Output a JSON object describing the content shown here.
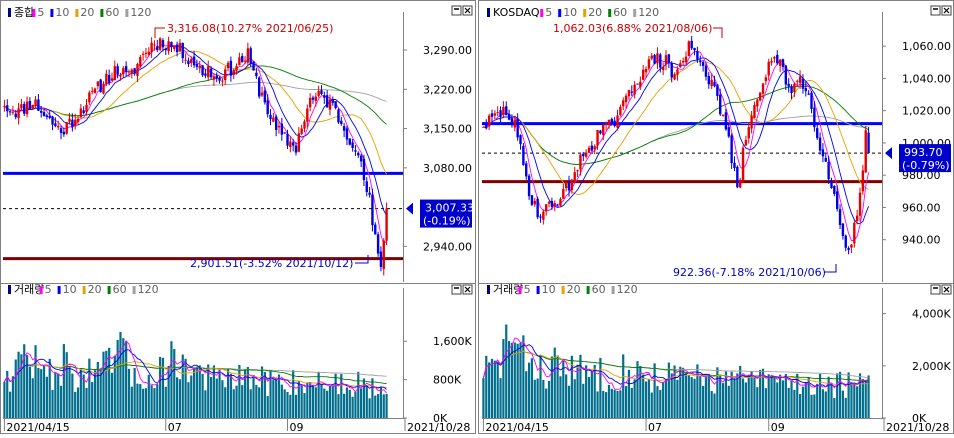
{
  "chart_data": [
    {
      "type": "candlestick",
      "pane": "price",
      "title": "종합",
      "ma_legend": [
        {
          "label": "5",
          "color": "#ff00ff"
        },
        {
          "label": "10",
          "color": "#0000ff"
        },
        {
          "label": "20",
          "color": "#e8a000"
        },
        {
          "label": "60",
          "color": "#008000"
        },
        {
          "label": "120",
          "color": "#a0a0a0"
        }
      ],
      "ylim": [
        2880,
        3340
      ],
      "yticks": [
        "3,290.00",
        "3,220.00",
        "3,150.00",
        "3,080.00",
        "2,940.00"
      ],
      "ytick_values": [
        3290,
        3220,
        3150,
        3080,
        2940
      ],
      "start": 3192,
      "n": 136,
      "waypoints": [
        [
          0,
          3190
        ],
        [
          5,
          3180
        ],
        [
          10,
          3200
        ],
        [
          15,
          3170
        ],
        [
          20,
          3145
        ],
        [
          24,
          3165
        ],
        [
          28,
          3190
        ],
        [
          32,
          3215
        ],
        [
          36,
          3240
        ],
        [
          40,
          3255
        ],
        [
          44,
          3240
        ],
        [
          48,
          3275
        ],
        [
          52,
          3300
        ],
        [
          56,
          3305
        ],
        [
          60,
          3296
        ],
        [
          64,
          3282
        ],
        [
          68,
          3265
        ],
        [
          70,
          3245
        ],
        [
          72,
          3260
        ],
        [
          74,
          3240
        ],
        [
          78,
          3250
        ],
        [
          82,
          3265
        ],
        [
          86,
          3280
        ],
        [
          88,
          3248
        ],
        [
          90,
          3220
        ],
        [
          92,
          3200
        ],
        [
          94,
          3170
        ],
        [
          96,
          3148
        ],
        [
          99,
          3130
        ],
        [
          103,
          3118
        ],
        [
          105,
          3155
        ],
        [
          108,
          3200
        ],
        [
          112,
          3208
        ],
        [
          116,
          3190
        ],
        [
          120,
          3150
        ],
        [
          124,
          3120
        ],
        [
          127,
          3060
        ],
        [
          129,
          3020
        ],
        [
          130,
          2980
        ],
        [
          131,
          2950
        ],
        [
          132,
          2920
        ],
        [
          133,
          2906
        ],
        [
          134,
          2960
        ],
        [
          135,
          3007.33
        ]
      ],
      "h_lines": [
        {
          "y": 3070,
          "color": "#0000ff"
        },
        {
          "y": 2918,
          "color": "#800000"
        }
      ],
      "dashed_line": {
        "y": 3007.33
      },
      "high_annotation": "3,316.08(10.27% 2021/06/25)",
      "low_annotation": "2,901.51(-3.52% 2021/10/12)",
      "current_label_1": "3,007.33",
      "current_label_2": "(-0.19%)",
      "ma_colors": {
        "ma5": "#ff00ff",
        "ma10": "#0000ff",
        "ma20": "#e8a000",
        "ma60": "#008000",
        "ma120": "#a0a0a0"
      }
    },
    {
      "type": "candlestick",
      "pane": "price",
      "title": "KOSDAQ",
      "ma_legend": [
        {
          "label": "5",
          "color": "#ff00ff"
        },
        {
          "label": "10",
          "color": "#0000ff"
        },
        {
          "label": "20",
          "color": "#e8a000"
        },
        {
          "label": "60",
          "color": "#008000"
        },
        {
          "label": "120",
          "color": "#a0a0a0"
        }
      ],
      "ylim": [
        915,
        1075
      ],
      "yticks": [
        "1,060.00",
        "1,040.00",
        "1,020.00",
        "1,000.00",
        "980.00",
        "960.00",
        "940.00"
      ],
      "ytick_values": [
        1060,
        1040,
        1020,
        1000,
        980,
        960,
        940
      ],
      "start": 1008,
      "n": 136,
      "waypoints": [
        [
          0,
          1010
        ],
        [
          4,
          1016
        ],
        [
          8,
          1020
        ],
        [
          11,
          1010
        ],
        [
          13,
          995
        ],
        [
          15,
          978
        ],
        [
          17,
          965
        ],
        [
          20,
          955
        ],
        [
          24,
          962
        ],
        [
          28,
          968
        ],
        [
          30,
          975
        ],
        [
          33,
          985
        ],
        [
          36,
          995
        ],
        [
          40,
          1005
        ],
        [
          44,
          1010
        ],
        [
          48,
          1018
        ],
        [
          52,
          1035
        ],
        [
          56,
          1045
        ],
        [
          60,
          1052
        ],
        [
          64,
          1050
        ],
        [
          66,
          1042
        ],
        [
          70,
          1050
        ],
        [
          72,
          1060
        ],
        [
          75,
          1055
        ],
        [
          78,
          1045
        ],
        [
          80,
          1035
        ],
        [
          83,
          1022
        ],
        [
          85,
          1010
        ],
        [
          87,
          990
        ],
        [
          89,
          970
        ],
        [
          90,
          980
        ],
        [
          92,
          1005
        ],
        [
          95,
          1020
        ],
        [
          98,
          1040
        ],
        [
          101,
          1052
        ],
        [
          104,
          1048
        ],
        [
          106,
          1038
        ],
        [
          108,
          1035
        ],
        [
          111,
          1040
        ],
        [
          114,
          1028
        ],
        [
          118,
          1000
        ],
        [
          122,
          975
        ],
        [
          125,
          950
        ],
        [
          127,
          936
        ],
        [
          129,
          940
        ],
        [
          132,
          965
        ],
        [
          134,
          1005
        ],
        [
          135,
          993.7
        ]
      ],
      "h_lines": [
        {
          "y": 1012,
          "color": "#0000ff"
        },
        {
          "y": 976,
          "color": "#800000"
        }
      ],
      "dashed_line": {
        "y": 993.7
      },
      "high_annotation": "1,062.03(6.88% 2021/08/06)",
      "low_annotation": "922.36(-7.18% 2021/10/06)",
      "current_label_1": "993.70",
      "current_label_2": "(-0.79%)",
      "ma_colors": {
        "ma5": "#ff00ff",
        "ma10": "#0000ff",
        "ma20": "#e8a000",
        "ma60": "#008000",
        "ma120": "#a0a0a0"
      }
    },
    {
      "type": "bar",
      "pane": "volume",
      "title": "거래량",
      "ma_legend": [
        {
          "label": "5",
          "color": "#ff00ff"
        },
        {
          "label": "10",
          "color": "#0000ff"
        },
        {
          "label": "20",
          "color": "#e8a000"
        },
        {
          "label": "60",
          "color": "#008000"
        },
        {
          "label": "120",
          "color": "#a0a0a0"
        }
      ],
      "ylim": [
        0,
        2500
      ],
      "yticks": [
        "1,600K",
        "800K",
        "0K"
      ],
      "ytick_values": [
        1600,
        800,
        0
      ],
      "xtick_labels": [
        "2021/04/15",
        "07",
        "09",
        "2021/10/28"
      ],
      "xtick_indices": [
        0,
        57,
        100,
        135
      ],
      "base": {
        "start": 1000,
        "end": 720
      },
      "bumps": [
        {
          "at": 8,
          "w": 4,
          "h": 500
        },
        {
          "at": 20,
          "w": 3,
          "h": 250
        },
        {
          "at": 40,
          "w": 5,
          "h": 600
        },
        {
          "at": 60,
          "w": 5,
          "h": 550
        },
        {
          "at": 68,
          "w": 4,
          "h": 200
        }
      ],
      "bar_color": "#006e8c",
      "ma_colors": {
        "ma5": "#ff00ff",
        "ma10": "#0000ff",
        "ma20": "#e8a000",
        "ma60": "#008000",
        "ma120": "#a0a0a0"
      }
    },
    {
      "type": "bar",
      "pane": "volume",
      "title": "거래량",
      "ma_legend": [
        {
          "label": "5",
          "color": "#ff00ff"
        },
        {
          "label": "10",
          "color": "#0000ff"
        },
        {
          "label": "20",
          "color": "#e8a000"
        },
        {
          "label": "60",
          "color": "#008000"
        },
        {
          "label": "120",
          "color": "#a0a0a0"
        }
      ],
      "ylim": [
        0,
        4600
      ],
      "yticks": [
        "4,000K",
        "2,000K",
        "0K"
      ],
      "ytick_values": [
        4000,
        2000,
        0
      ],
      "xtick_labels": [
        "2021/04/15",
        "07",
        "09",
        "2021/10/28"
      ],
      "xtick_indices": [
        0,
        57,
        100,
        135
      ],
      "base": {
        "start": 2000,
        "end": 1300
      },
      "bumps": [
        {
          "at": 9,
          "w": 3,
          "h": 1600
        },
        {
          "at": 15,
          "w": 4,
          "h": 600
        },
        {
          "at": 26,
          "w": 5,
          "h": 250
        },
        {
          "at": 50,
          "w": 5,
          "h": 200
        }
      ],
      "bar_color": "#006e8c",
      "ma_colors": {
        "ma5": "#ff00ff",
        "ma10": "#0000ff",
        "ma20": "#e8a000",
        "ma60": "#008000",
        "ma120": "#a0a0a0"
      }
    }
  ]
}
